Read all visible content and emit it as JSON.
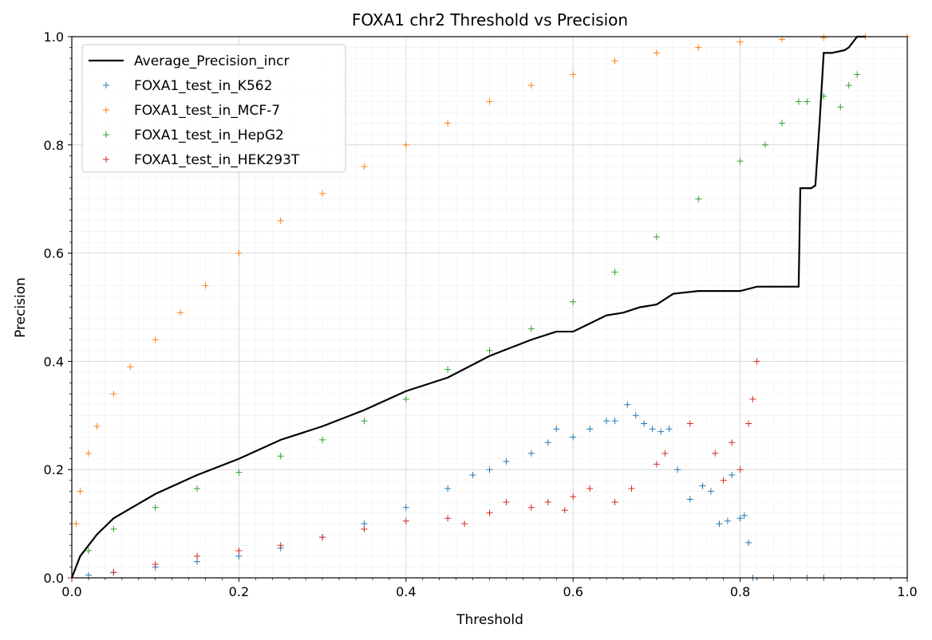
{
  "chart_data": {
    "type": "scatter",
    "title": "FOXA1 chr2 Threshold vs Precision",
    "xlabel": "Threshold",
    "ylabel": "Precision",
    "xlim": [
      0.0,
      1.0
    ],
    "ylim": [
      0.0,
      1.0
    ],
    "x_ticks": [
      "0.0",
      "0.2",
      "0.4",
      "0.6",
      "0.8",
      "1.0"
    ],
    "y_ticks": [
      "0.0",
      "0.2",
      "0.4",
      "0.6",
      "0.8",
      "1.0"
    ],
    "grid": true,
    "minor_grid": true,
    "legend_position": "top-left",
    "colors": {
      "average": "#000000",
      "k562": "#1f77b4",
      "mcf7": "#ff7f0e",
      "hepg2": "#2ca02c",
      "hek293t": "#d62728",
      "grid_major": "#d9d9d9",
      "grid_minor": "#efefef"
    },
    "line": {
      "name": "Average_Precision_incr",
      "style": "line",
      "x": [
        0.0,
        0.01,
        0.03,
        0.05,
        0.1,
        0.15,
        0.2,
        0.25,
        0.3,
        0.35,
        0.4,
        0.45,
        0.5,
        0.55,
        0.58,
        0.6,
        0.62,
        0.64,
        0.66,
        0.68,
        0.7,
        0.72,
        0.75,
        0.78,
        0.8,
        0.82,
        0.87,
        0.872,
        0.885,
        0.89,
        0.895,
        0.9,
        0.91,
        0.925,
        0.93,
        0.94,
        0.945,
        0.95
      ],
      "y": [
        0.0,
        0.04,
        0.08,
        0.11,
        0.155,
        0.19,
        0.22,
        0.255,
        0.28,
        0.31,
        0.345,
        0.37,
        0.41,
        0.44,
        0.455,
        0.455,
        0.47,
        0.485,
        0.49,
        0.5,
        0.505,
        0.525,
        0.53,
        0.53,
        0.53,
        0.538,
        0.538,
        0.72,
        0.72,
        0.725,
        0.84,
        0.97,
        0.97,
        0.975,
        0.98,
        1.0,
        1.0,
        1.0
      ]
    },
    "series": [
      {
        "name": "FOXA1_test_in_K562",
        "color": "#1f77b4",
        "x": [
          0.0,
          0.02,
          0.05,
          0.1,
          0.15,
          0.2,
          0.25,
          0.3,
          0.35,
          0.4,
          0.45,
          0.48,
          0.5,
          0.52,
          0.55,
          0.57,
          0.58,
          0.6,
          0.62,
          0.64,
          0.65,
          0.665,
          0.675,
          0.685,
          0.695,
          0.705,
          0.715,
          0.725,
          0.74,
          0.755,
          0.765,
          0.775,
          0.785,
          0.79,
          0.8,
          0.805,
          0.81,
          0.815,
          0.84,
          0.88,
          0.9
        ],
        "y": [
          0.0,
          0.005,
          0.01,
          0.02,
          0.03,
          0.04,
          0.055,
          0.075,
          0.1,
          0.13,
          0.165,
          0.19,
          0.2,
          0.215,
          0.23,
          0.25,
          0.275,
          0.26,
          0.275,
          0.29,
          0.29,
          0.32,
          0.3,
          0.285,
          0.275,
          0.27,
          0.275,
          0.2,
          0.145,
          0.17,
          0.16,
          0.1,
          0.105,
          0.19,
          0.11,
          0.115,
          0.065,
          0.0,
          0.0,
          0.0,
          0.0
        ]
      },
      {
        "name": "FOXA1_test_in_MCF-7",
        "color": "#ff7f0e",
        "x": [
          0.0,
          0.005,
          0.01,
          0.02,
          0.03,
          0.05,
          0.07,
          0.1,
          0.13,
          0.16,
          0.2,
          0.25,
          0.3,
          0.35,
          0.4,
          0.45,
          0.5,
          0.55,
          0.6,
          0.65,
          0.7,
          0.75,
          0.8,
          0.85,
          0.9,
          0.95,
          1.0
        ],
        "y": [
          0.0,
          0.1,
          0.16,
          0.23,
          0.28,
          0.34,
          0.39,
          0.44,
          0.49,
          0.54,
          0.6,
          0.66,
          0.71,
          0.76,
          0.8,
          0.84,
          0.88,
          0.91,
          0.93,
          0.955,
          0.97,
          0.98,
          0.99,
          0.995,
          0.998,
          1.0,
          1.0
        ]
      },
      {
        "name": "FOXA1_test_in_HepG2",
        "color": "#2ca02c",
        "x": [
          0.0,
          0.02,
          0.05,
          0.1,
          0.15,
          0.2,
          0.25,
          0.3,
          0.35,
          0.4,
          0.45,
          0.5,
          0.55,
          0.6,
          0.65,
          0.7,
          0.75,
          0.8,
          0.83,
          0.85,
          0.87,
          0.88,
          0.9,
          0.92,
          0.93,
          0.94
        ],
        "y": [
          0.0,
          0.05,
          0.09,
          0.13,
          0.165,
          0.195,
          0.225,
          0.255,
          0.29,
          0.33,
          0.385,
          0.42,
          0.46,
          0.51,
          0.565,
          0.63,
          0.7,
          0.77,
          0.8,
          0.84,
          0.88,
          0.88,
          0.89,
          0.87,
          0.91,
          0.93
        ]
      },
      {
        "name": "FOXA1_test_in_HEK293T",
        "color": "#d62728",
        "x": [
          0.0,
          0.05,
          0.1,
          0.15,
          0.2,
          0.25,
          0.3,
          0.35,
          0.4,
          0.45,
          0.47,
          0.5,
          0.52,
          0.55,
          0.57,
          0.59,
          0.6,
          0.62,
          0.65,
          0.67,
          0.7,
          0.71,
          0.74,
          0.77,
          0.78,
          0.79,
          0.8,
          0.81,
          0.815,
          0.82
        ],
        "y": [
          0.0,
          0.01,
          0.025,
          0.04,
          0.05,
          0.06,
          0.075,
          0.09,
          0.105,
          0.11,
          0.1,
          0.12,
          0.14,
          0.13,
          0.14,
          0.125,
          0.15,
          0.165,
          0.14,
          0.165,
          0.21,
          0.23,
          0.285,
          0.23,
          0.18,
          0.25,
          0.2,
          0.285,
          0.33,
          0.4
        ]
      }
    ]
  }
}
